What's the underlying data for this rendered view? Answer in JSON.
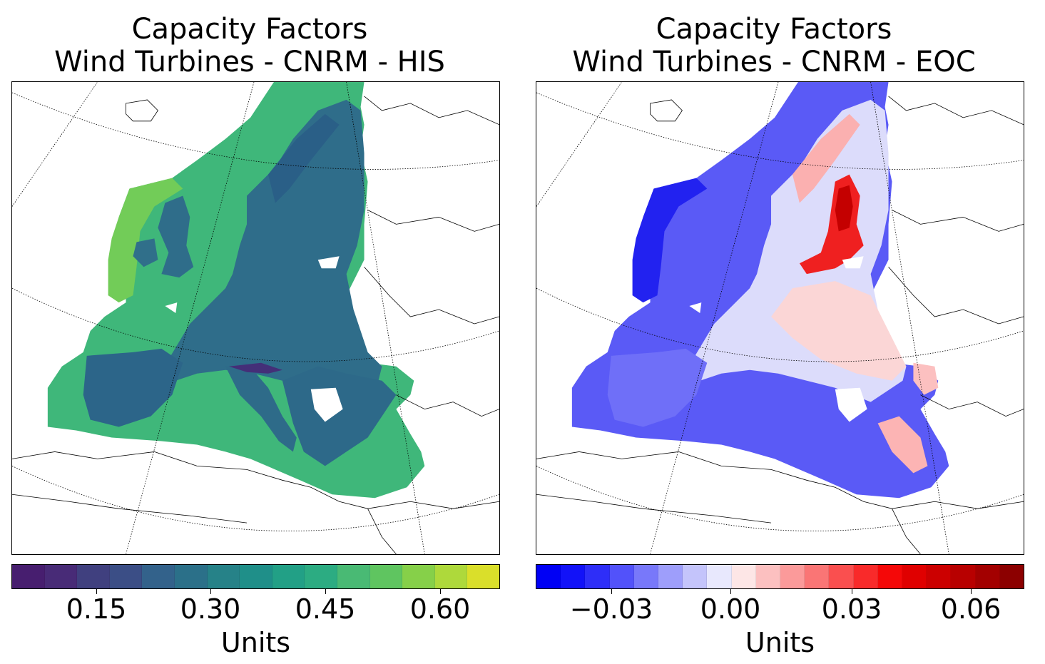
{
  "panels": [
    {
      "title_line1": "Capacity Factors",
      "title_line2": "Wind Turbines - CNRM - HIS",
      "colorbar_label": "Units",
      "colorbar_ticks": [
        "0.15",
        "0.30",
        "0.45",
        "0.60"
      ],
      "colormap": "viridis",
      "colorbar_colors": [
        "#471e6f",
        "#482b77",
        "#40407f",
        "#3b4e86",
        "#33628b",
        "#2b7089",
        "#268288",
        "#1f8f89",
        "#22a086",
        "#2cac82",
        "#49ba74",
        "#5fc560",
        "#86d049",
        "#aed93b",
        "#dadf2a"
      ],
      "colorbar_range": [
        0.05,
        0.69
      ]
    },
    {
      "title_line1": "Capacity Factors",
      "title_line2": "Wind Turbines - CNRM - EOC",
      "colorbar_label": "Units",
      "colorbar_ticks": [
        "−0.03",
        "0.00",
        "0.03",
        "0.06"
      ],
      "colormap": "bwr",
      "colorbar_colors": [
        "#0000f5",
        "#1212f8",
        "#2e2ef8",
        "#5252fa",
        "#7878fa",
        "#9e9efb",
        "#c4c4fb",
        "#e8e8fd",
        "#fde6e6",
        "#fcc0c0",
        "#fb9a9a",
        "#fa7575",
        "#fa4f4f",
        "#f92a2a",
        "#f50808",
        "#e00000",
        "#cc0000",
        "#b80000",
        "#a30000",
        "#8c0000"
      ],
      "colorbar_range": [
        -0.055,
        0.075
      ]
    }
  ]
}
